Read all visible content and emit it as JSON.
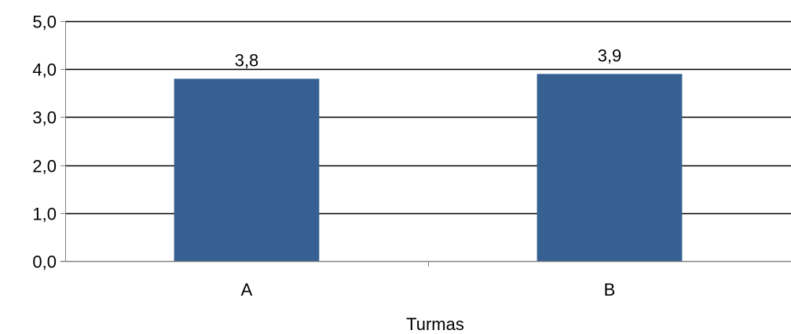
{
  "chart_data": {
    "type": "bar",
    "categories": [
      "A",
      "B"
    ],
    "values": [
      3.8,
      3.9
    ],
    "data_labels": [
      "3,8",
      "3,9"
    ],
    "xlabel": "Turmas",
    "ylabel": "",
    "ylim": [
      0,
      5
    ],
    "y_ticks": [
      0,
      1,
      2,
      3,
      4,
      5
    ],
    "y_tick_labels": [
      "0,0",
      "1,0",
      "2,0",
      "3,0",
      "4,0",
      "5,0"
    ],
    "grid": true,
    "legend": "none",
    "bar_color": "#366092",
    "grid_color": "#000000"
  }
}
